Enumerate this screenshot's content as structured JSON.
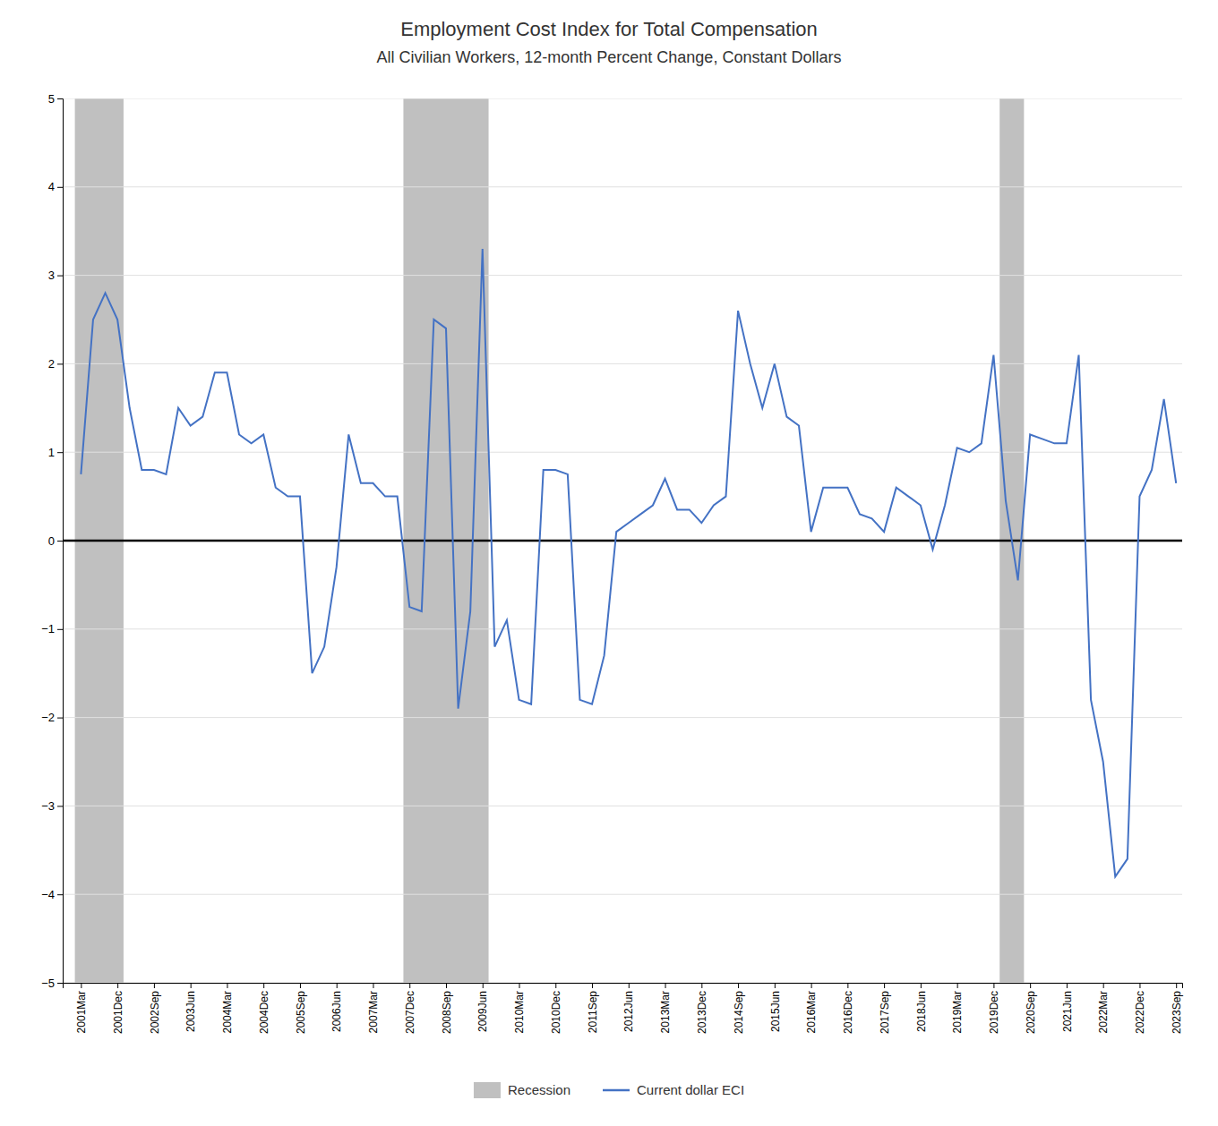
{
  "chart_data": {
    "type": "line",
    "title": "Employment Cost Index for Total Compensation",
    "subtitle": "All Civilian Workers, 12-month Percent Change, Constant Dollars",
    "categories": [
      "2001Mar",
      null,
      null,
      "2001Dec",
      null,
      null,
      "2002Sep",
      null,
      null,
      "2003Jun",
      null,
      null,
      "2004Mar",
      null,
      null,
      "2004Dec",
      null,
      null,
      "2005Sep",
      null,
      null,
      "2006Jun",
      null,
      null,
      "2007Mar",
      null,
      null,
      "2007Dec",
      null,
      null,
      "2008Sep",
      null,
      null,
      "2009Jun",
      null,
      null,
      "2010Mar",
      null,
      null,
      "2010Dec",
      null,
      null,
      "2011Sep",
      null,
      null,
      "2012Jun",
      null,
      null,
      "2013Mar",
      null,
      null,
      "2013Dec",
      null,
      null,
      "2014Sep",
      null,
      null,
      "2015Jun",
      null,
      null,
      "2016Mar",
      null,
      null,
      "2016Dec",
      null,
      null,
      "2017Sep",
      null,
      null,
      "2018Jun",
      null,
      null,
      "2019Mar",
      null,
      null,
      "2019Dec",
      null,
      null,
      "2020Sep",
      null,
      null,
      "2021Jun",
      null,
      null,
      "2022Mar",
      null,
      null,
      "2022Dec",
      null,
      null,
      "2023Sep"
    ],
    "series": [
      {
        "name": "Current dollar ECI",
        "color": "#4472C4",
        "values": [
          0.75,
          2.5,
          2.8,
          2.5,
          1.5,
          0.8,
          0.8,
          0.75,
          1.5,
          1.3,
          1.4,
          1.9,
          1.9,
          1.2,
          1.1,
          1.2,
          0.6,
          0.5,
          0.5,
          -1.5,
          -1.2,
          -0.3,
          1.2,
          0.65,
          0.65,
          0.5,
          0.5,
          -0.75,
          -0.8,
          2.5,
          2.4,
          -1.9,
          -0.8,
          3.3,
          -1.2,
          -0.9,
          -1.8,
          -1.85,
          0.8,
          0.8,
          0.75,
          -1.8,
          -1.85,
          -1.3,
          0.1,
          0.2,
          0.3,
          0.4,
          0.7,
          0.35,
          0.35,
          0.2,
          0.4,
          0.5,
          2.6,
          2.0,
          1.5,
          2.0,
          1.4,
          1.3,
          0.1,
          0.6,
          0.6,
          0.6,
          0.3,
          0.25,
          0.1,
          0.6,
          0.5,
          0.4,
          -0.1,
          0.4,
          1.05,
          1.0,
          1.1,
          2.1,
          0.45,
          -0.45,
          1.2,
          1.15,
          1.1,
          1.1,
          2.1,
          -1.8,
          -2.5,
          -3.8,
          -3.6,
          0.5,
          0.8,
          1.6,
          0.65
        ]
      }
    ],
    "shading": {
      "name": "Recession",
      "color": "#C0C0C0",
      "ranges": [
        [
          0,
          3
        ],
        [
          27,
          33
        ],
        [
          76,
          77
        ]
      ]
    },
    "reference_lines": [
      {
        "value": 0,
        "color": "black"
      }
    ],
    "ylim": [
      -5,
      5
    ],
    "yticks": [
      {
        "value": -5,
        "label": "−5"
      },
      {
        "value": -4,
        "label": "−4"
      },
      {
        "value": -3,
        "label": "−3"
      },
      {
        "value": -2,
        "label": "−2"
      },
      {
        "value": -1,
        "label": "−1"
      },
      0,
      1,
      2,
      3,
      4,
      5
    ],
    "grid": true,
    "legend": "bottom"
  }
}
